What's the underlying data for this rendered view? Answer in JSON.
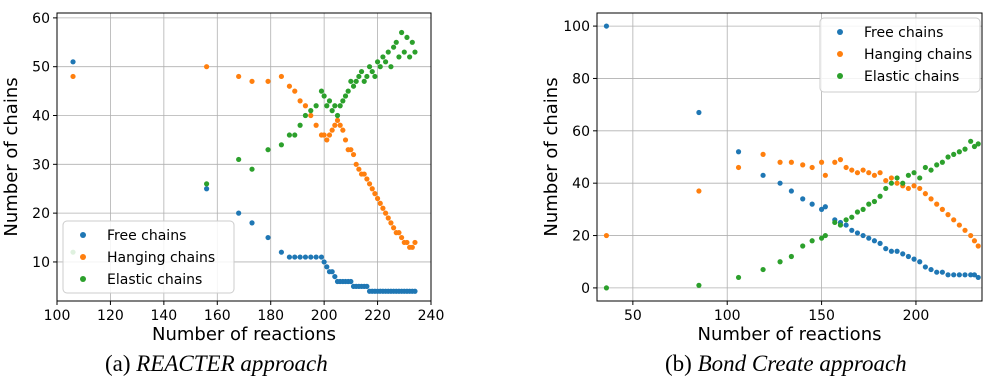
{
  "colors": {
    "free": "#1f77b4",
    "hanging": "#ff7f0e",
    "elastic": "#2ca02c"
  },
  "chart_data": [
    {
      "type": "scatter",
      "caption_label": "(a)",
      "caption_name": "REACTER approach",
      "xlabel": "Number of reactions",
      "ylabel": "Number of chains",
      "xlim": [
        100,
        240
      ],
      "ylim": [
        2,
        61
      ],
      "xticks": [
        100,
        120,
        140,
        160,
        180,
        200,
        220,
        240
      ],
      "yticks": [
        10,
        20,
        30,
        40,
        50,
        60
      ],
      "grid": true,
      "legend_position": "lower-left",
      "series": [
        {
          "name": "Free chains",
          "x": [
            106,
            156,
            168,
            173,
            179,
            184,
            187,
            189,
            191,
            193,
            195,
            197,
            199,
            200,
            201,
            202,
            203,
            204,
            205,
            206,
            207,
            208,
            209,
            210,
            211,
            212,
            213,
            214,
            215,
            216,
            217,
            218,
            219,
            220,
            221,
            222,
            223,
            224,
            225,
            226,
            227,
            228,
            229,
            230,
            231,
            232,
            233,
            234
          ],
          "y": [
            51,
            25,
            20,
            18,
            15,
            12,
            11,
            11,
            11,
            11,
            11,
            11,
            11,
            10,
            9,
            8,
            8,
            7,
            6,
            6,
            6,
            6,
            6,
            6,
            5,
            5,
            5,
            5,
            5,
            5,
            4,
            4,
            4,
            4,
            4,
            4,
            4,
            4,
            4,
            4,
            4,
            4,
            4,
            4,
            4,
            4,
            4,
            4
          ]
        },
        {
          "name": "Hanging chains",
          "x": [
            106,
            156,
            168,
            173,
            179,
            184,
            187,
            189,
            191,
            193,
            195,
            197,
            199,
            200,
            201,
            202,
            203,
            204,
            205,
            206,
            207,
            208,
            209,
            210,
            211,
            212,
            213,
            214,
            215,
            216,
            217,
            218,
            219,
            220,
            221,
            222,
            223,
            224,
            225,
            226,
            227,
            228,
            229,
            230,
            231,
            232,
            233,
            234
          ],
          "y": [
            48,
            50,
            48,
            47,
            47,
            48,
            46,
            45,
            43,
            42,
            40,
            38,
            36,
            36,
            35,
            36,
            37,
            38,
            39,
            38,
            37,
            35,
            33,
            33,
            32,
            30,
            29,
            28,
            28,
            27,
            26,
            25,
            24,
            23,
            22,
            21,
            20,
            19,
            18,
            17,
            16,
            16,
            15,
            14,
            14,
            13,
            13,
            14
          ]
        },
        {
          "name": "Elastic chains",
          "x": [
            106,
            156,
            168,
            173,
            179,
            184,
            187,
            189,
            191,
            193,
            195,
            197,
            199,
            200,
            201,
            202,
            203,
            204,
            205,
            206,
            207,
            208,
            209,
            210,
            211,
            212,
            213,
            214,
            215,
            216,
            217,
            218,
            219,
            220,
            221,
            222,
            223,
            224,
            225,
            226,
            227,
            228,
            229,
            230,
            231,
            232,
            233,
            234
          ],
          "y": [
            12,
            26,
            31,
            29,
            33,
            34,
            36,
            36,
            38,
            40,
            41,
            42,
            45,
            44,
            42,
            43,
            41,
            42,
            40,
            42,
            43,
            44,
            45,
            47,
            46,
            47,
            48,
            49,
            47,
            48,
            50,
            49,
            48,
            51,
            50,
            52,
            51,
            53,
            50,
            54,
            55,
            52,
            57,
            53,
            56,
            52,
            55,
            53
          ]
        }
      ]
    },
    {
      "type": "scatter",
      "caption_label": "(b)",
      "caption_name": "Bond Create approach",
      "xlabel": "Number of reactions",
      "ylabel": "Number of chains",
      "xlim": [
        31,
        235
      ],
      "ylim": [
        -5,
        105
      ],
      "xticks": [
        50,
        100,
        150,
        200
      ],
      "yticks": [
        0,
        20,
        40,
        60,
        80,
        100
      ],
      "grid": true,
      "legend_position": "upper-right",
      "series": [
        {
          "name": "Free chains",
          "x": [
            36,
            85,
            106,
            119,
            128,
            134,
            140,
            145,
            150,
            152,
            157,
            160,
            163,
            166,
            169,
            172,
            175,
            178,
            181,
            184,
            187,
            190,
            193,
            196,
            199,
            202,
            205,
            208,
            211,
            214,
            217,
            220,
            223,
            226,
            229,
            231,
            233
          ],
          "y": [
            100,
            67,
            52,
            43,
            40,
            37,
            34,
            32,
            30,
            31,
            26,
            25,
            24,
            22,
            21,
            20,
            19,
            18,
            17,
            15,
            14,
            14,
            13,
            12,
            11,
            10,
            8,
            7,
            6,
            6,
            5,
            5,
            5,
            5,
            5,
            5,
            4
          ]
        },
        {
          "name": "Hanging chains",
          "x": [
            36,
            85,
            106,
            119,
            128,
            134,
            140,
            145,
            150,
            152,
            157,
            160,
            163,
            166,
            169,
            172,
            175,
            178,
            181,
            184,
            187,
            190,
            193,
            196,
            199,
            202,
            205,
            208,
            211,
            214,
            217,
            220,
            223,
            226,
            229,
            231,
            233
          ],
          "y": [
            20,
            37,
            46,
            51,
            48,
            48,
            47,
            46,
            48,
            43,
            48,
            49,
            46,
            45,
            44,
            45,
            44,
            43,
            44,
            41,
            42,
            40,
            39,
            38,
            39,
            38,
            36,
            34,
            32,
            30,
            28,
            26,
            24,
            22,
            20,
            18,
            16
          ]
        },
        {
          "name": "Elastic chains",
          "x": [
            36,
            85,
            106,
            119,
            128,
            134,
            140,
            145,
            150,
            152,
            157,
            160,
            163,
            166,
            169,
            172,
            175,
            178,
            181,
            184,
            187,
            190,
            193,
            196,
            199,
            202,
            205,
            208,
            211,
            214,
            217,
            220,
            223,
            226,
            229,
            231,
            233
          ],
          "y": [
            0,
            1,
            4,
            7,
            10,
            12,
            16,
            18,
            19,
            20,
            25,
            24,
            26,
            27,
            29,
            30,
            32,
            33,
            35,
            38,
            40,
            42,
            40,
            43,
            44,
            42,
            46,
            45,
            47,
            48,
            50,
            51,
            52,
            53,
            56,
            54,
            55
          ]
        }
      ]
    }
  ]
}
